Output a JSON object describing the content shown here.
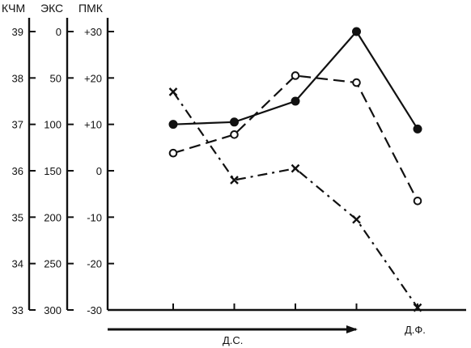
{
  "chart_data": {
    "type": "line",
    "axes": [
      {
        "name": "КЧМ",
        "ticks": [
          "39",
          "38",
          "37",
          "36",
          "35",
          "34",
          "33"
        ]
      },
      {
        "name": "ЭКС",
        "ticks": [
          "0",
          "50",
          "100",
          "150",
          "200",
          "250",
          "300"
        ]
      },
      {
        "name": "ПМК",
        "ticks": [
          "+30",
          "+20",
          "+10",
          "0",
          "-10",
          "-20",
          "-30"
        ]
      }
    ],
    "ylim": [
      33,
      39
    ],
    "x_points": 5,
    "x_label_phase": "Д.С.",
    "x_label_end": "Д.Ф.",
    "series": [
      {
        "style": "solid",
        "marker": "filled-circle",
        "values": [
          37.0,
          37.05,
          37.5,
          39.0,
          36.9
        ]
      },
      {
        "style": "dashed",
        "marker": "open-circle",
        "values": [
          36.38,
          36.78,
          38.05,
          37.9,
          35.35
        ]
      },
      {
        "style": "dash-dot",
        "marker": "x",
        "values": [
          37.7,
          35.8,
          36.05,
          34.95,
          33.05
        ]
      }
    ]
  }
}
